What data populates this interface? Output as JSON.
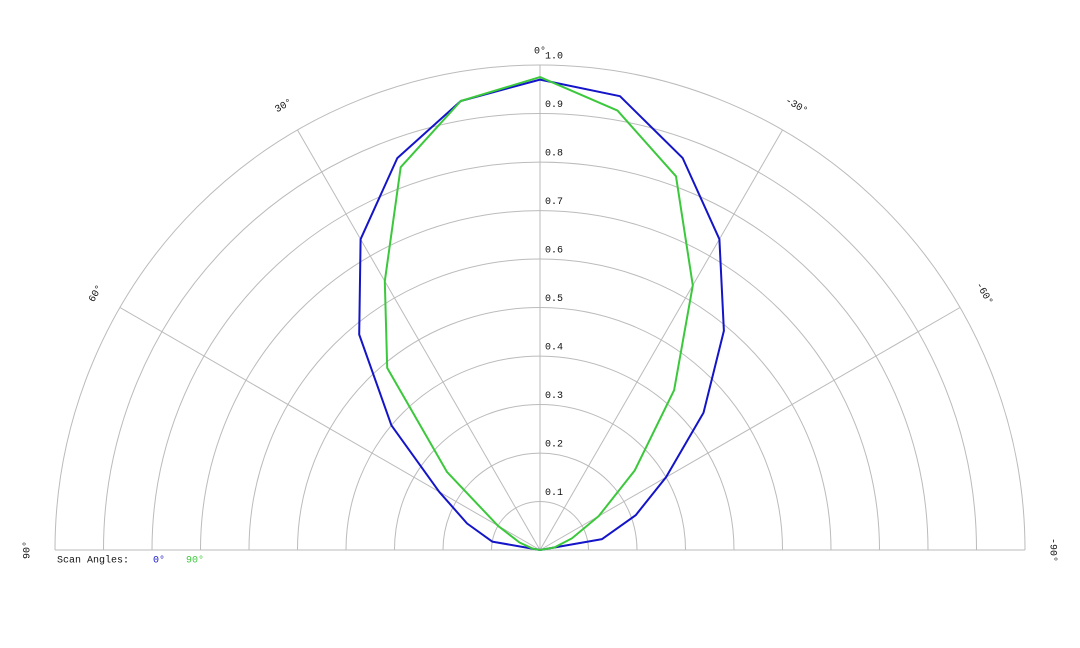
{
  "chart_data": {
    "type": "polar-line",
    "x": [
      -90,
      -80,
      -70,
      -60,
      -50,
      -40,
      -30,
      -20,
      -10,
      0,
      10,
      20,
      30,
      40,
      50,
      60,
      70,
      80,
      90
    ],
    "xlim": [
      90,
      -90
    ],
    "xticks": [
      {
        "value": 90,
        "label": "90°"
      },
      {
        "value": 60,
        "label": "60°"
      },
      {
        "value": 30,
        "label": "30°"
      },
      {
        "value": 0,
        "label": "0°"
      },
      {
        "value": -30,
        "label": "-30°"
      },
      {
        "value": -60,
        "label": "-60°"
      },
      {
        "value": -90,
        "label": "-90°"
      }
    ],
    "ylim": [
      0,
      1
    ],
    "yticks": [
      0.1,
      0.2,
      0.3,
      0.4,
      0.5,
      0.6,
      0.7,
      0.8,
      0.9,
      {
        "value": 1,
        "label": "1.0"
      }
    ],
    "legend_title": "Scan Angles:",
    "series": [
      {
        "name": "0°",
        "color": "#1414c8",
        "values": [
          0,
          0.13,
          0.21,
          0.3,
          0.44,
          0.59,
          0.74,
          0.86,
          0.95,
          0.97,
          0.94,
          0.86,
          0.74,
          0.58,
          0.4,
          0.24,
          0.16,
          0.1,
          0
        ]
      },
      {
        "name": "90°",
        "color": "#3cc83c",
        "values": [
          0,
          0.03,
          0.07,
          0.14,
          0.255,
          0.43,
          0.63,
          0.82,
          0.92,
          0.975,
          0.94,
          0.84,
          0.64,
          0.49,
          0.25,
          0.1,
          0.045,
          0.015,
          0
        ]
      }
    ],
    "grid": true
  }
}
